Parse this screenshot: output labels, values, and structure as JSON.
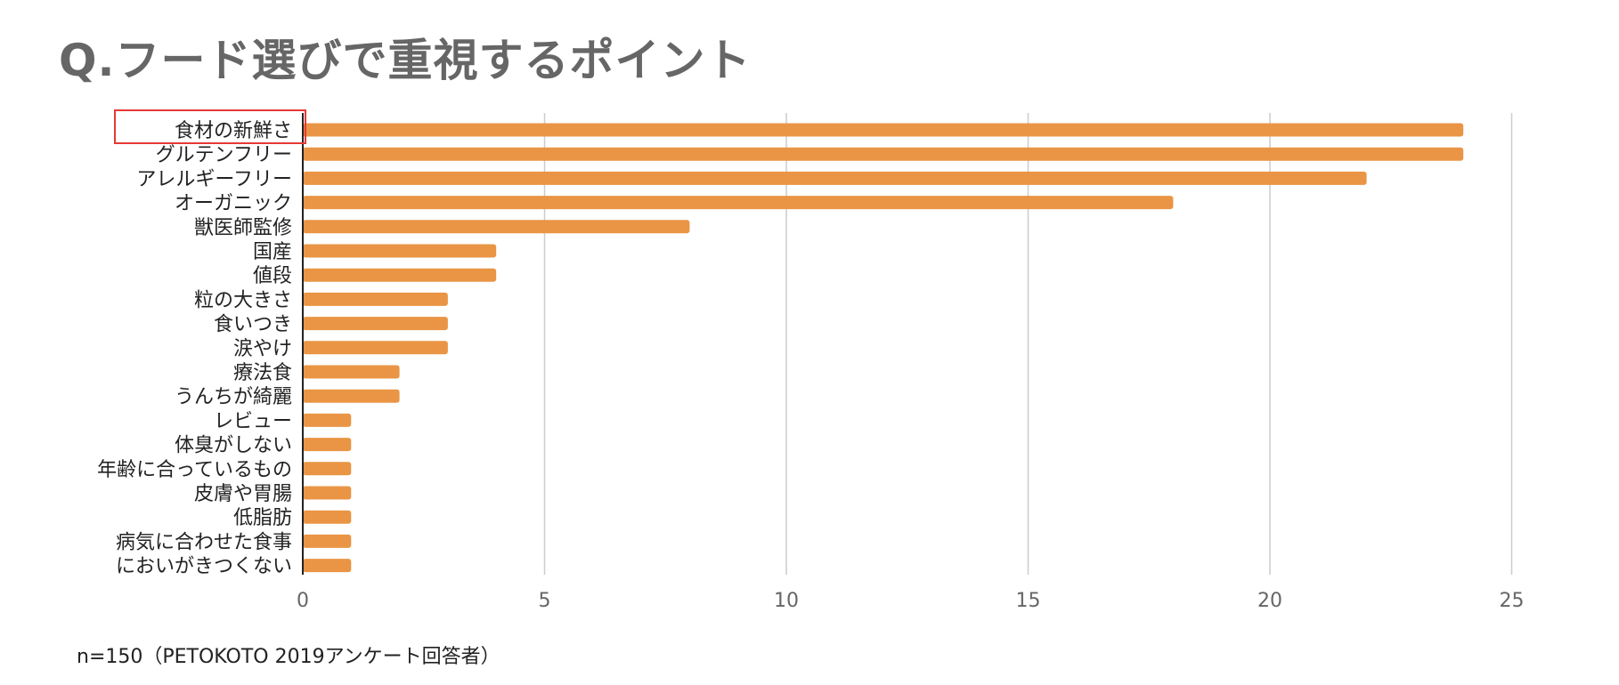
{
  "title": "Q.フード選びで重視するポイント",
  "footnote": "n=150（PETOKOTO 2019アンケート回答者）",
  "colors": {
    "bar": "#EA9545",
    "grid": "#CCCCCC",
    "axis": "#222222",
    "tick_label": "#666666",
    "category_label": "#222222",
    "highlight_box": "#E53935"
  },
  "highlight_category": "食材の新鮮さ",
  "chart_data": {
    "type": "bar",
    "orientation": "horizontal",
    "categories": [
      "食材の新鮮さ",
      "グルテンフリー",
      "アレルギーフリー",
      "オーガニック",
      "獣医師監修",
      "国産",
      "値段",
      "粒の大きさ",
      "食いつき",
      "涙やけ",
      "療法食",
      "うんちが綺麗",
      "レビュー",
      "体臭がしない",
      "年齢に合っているもの",
      "皮膚や胃腸",
      "低脂肪",
      "病気に合わせた食事",
      "においがきつくない"
    ],
    "values": [
      24,
      24,
      22,
      18,
      8,
      4,
      4,
      3,
      3,
      3,
      2,
      2,
      1,
      1,
      1,
      1,
      1,
      1,
      1
    ],
    "xlim": [
      0,
      25
    ],
    "xticks": [
      "0",
      "5",
      "10",
      "15",
      "20",
      "25"
    ],
    "grid": true,
    "legend": "none"
  }
}
